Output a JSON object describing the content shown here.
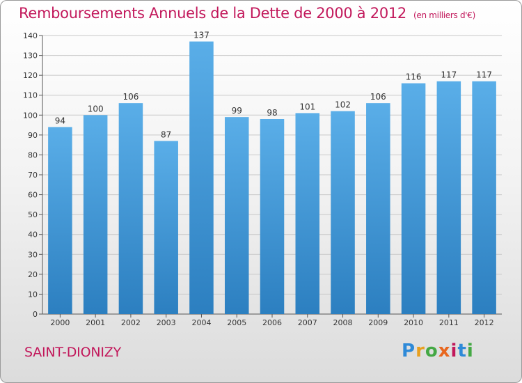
{
  "header": {
    "title": "Remboursements Annuels de la Dette de 2000 à 2012",
    "unit": "(en milliers d'€)"
  },
  "footer": {
    "commune": "SAINT-DIONIZY",
    "logo_text": "Proxiti"
  },
  "colors": {
    "title": "#c2185b",
    "bar_top": "#5aaee8",
    "bar_bottom": "#2c7fc0",
    "grid": "#c8c8c8"
  },
  "chart_data": {
    "type": "bar",
    "title": "Remboursements Annuels de la Dette de 2000 à 2012",
    "subtitle": "(en milliers d'€)",
    "xlabel": "",
    "ylabel": "",
    "categories": [
      "2000",
      "2001",
      "2002",
      "2003",
      "2004",
      "2005",
      "2006",
      "2007",
      "2008",
      "2009",
      "2010",
      "2011",
      "2012"
    ],
    "values": [
      94,
      100,
      106,
      87,
      137,
      99,
      98,
      101,
      102,
      106,
      116,
      117,
      117
    ],
    "ylim": [
      0,
      140
    ],
    "yticks": [
      0,
      10,
      20,
      30,
      40,
      50,
      60,
      70,
      80,
      90,
      100,
      110,
      120,
      130,
      140
    ],
    "grid": true,
    "legend": "none"
  }
}
